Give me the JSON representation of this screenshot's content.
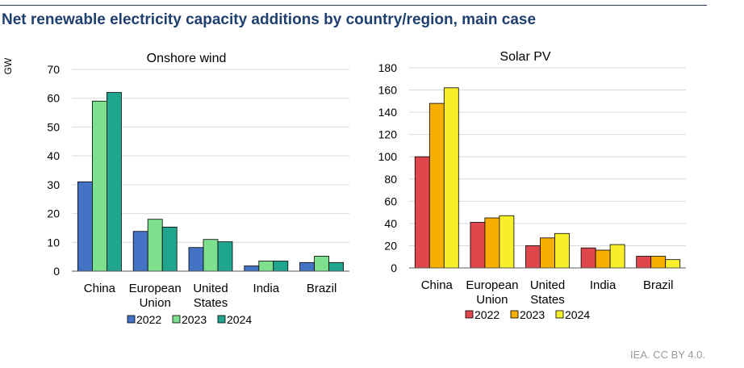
{
  "title": "Net renewable electricity capacity additions by country/region, main case",
  "credit": "IEA. CC BY 4.0.",
  "colors": {
    "grid": "#d9d9d9",
    "axis": "#595959",
    "text": "#000000"
  },
  "chart_data": [
    {
      "type": "bar",
      "title": "Onshore wind",
      "ylabel": "GW",
      "xlabel": "",
      "ylim": [
        0,
        70
      ],
      "yticks": [
        0,
        10,
        20,
        30,
        40,
        50,
        60,
        70
      ],
      "grid": true,
      "legend": "bottom",
      "categories": [
        [
          "China"
        ],
        [
          "European",
          "Union"
        ],
        [
          "United",
          "States"
        ],
        [
          "India"
        ],
        [
          "Brazil"
        ]
      ],
      "series": [
        {
          "name": "2022",
          "color": "#4472c4",
          "values": [
            31,
            13.8,
            8.2,
            1.8,
            3.0
          ]
        },
        {
          "name": "2023",
          "color": "#7de08f",
          "values": [
            59,
            18,
            11,
            3.5,
            5.2
          ]
        },
        {
          "name": "2024",
          "color": "#20a68f",
          "values": [
            62,
            15.3,
            10.2,
            3.5,
            3.0
          ]
        }
      ]
    },
    {
      "type": "bar",
      "title": "Solar PV",
      "ylabel": "",
      "xlabel": "",
      "ylim": [
        0,
        180
      ],
      "yticks": [
        0,
        20,
        40,
        60,
        80,
        100,
        120,
        140,
        160,
        180
      ],
      "grid": true,
      "legend": "bottom",
      "categories": [
        [
          "China"
        ],
        [
          "European",
          "Union"
        ],
        [
          "United",
          "States"
        ],
        [
          "India"
        ],
        [
          "Brazil"
        ]
      ],
      "series": [
        {
          "name": "2022",
          "color": "#e0474c",
          "values": [
            100,
            41,
            20,
            18,
            10.5
          ]
        },
        {
          "name": "2023",
          "color": "#f6ae00",
          "values": [
            148,
            45,
            27,
            16,
            10.5
          ]
        },
        {
          "name": "2024",
          "color": "#f8ef2a",
          "values": [
            162,
            47,
            31,
            21,
            7.5
          ]
        }
      ]
    }
  ]
}
